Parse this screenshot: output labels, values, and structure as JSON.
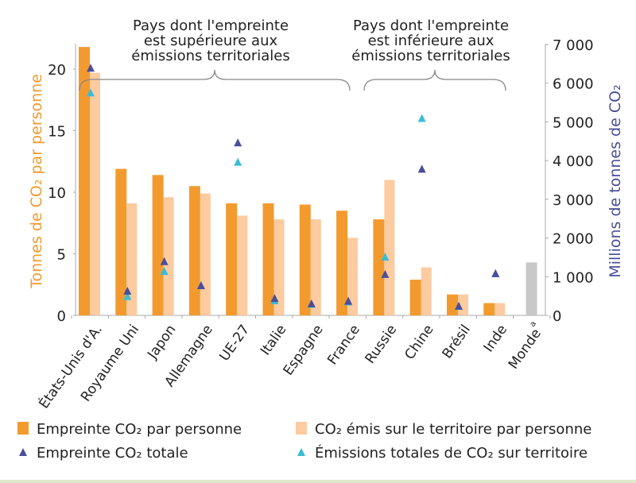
{
  "chart_data": {
    "type": "bar",
    "categories": [
      "États-Unis d'A.",
      "Royaume Uni",
      "Japon",
      "Allemagne",
      "UE-27",
      "Italie",
      "Espagne",
      "France",
      "Russie",
      "Chine",
      "Brésil",
      "Inde",
      "Monde"
    ],
    "category_superscripts": {
      "Monde": "a"
    },
    "y_left": {
      "label": "Tonnes de CO₂ par personne",
      "ylim": [
        0,
        22
      ],
      "ticks": [
        0,
        5,
        10,
        15,
        20
      ],
      "color": "#f39a2e"
    },
    "y_right": {
      "label": "Millions de tonnes de CO₂",
      "ylim": [
        0,
        7000
      ],
      "ticks": [
        0,
        1000,
        2000,
        3000,
        4000,
        5000,
        6000,
        7000
      ],
      "tick_labels": [
        "0",
        "1 000",
        "2 000",
        "3 000",
        "4 000",
        "5 000",
        "6 000",
        "7 000"
      ],
      "color": "#4a4f9a"
    },
    "series": [
      {
        "name": "Empreinte CO₂ par personne",
        "kind": "bar",
        "axis": "left",
        "color": "#f39a2e",
        "values": [
          21.8,
          11.9,
          11.4,
          10.5,
          9.1,
          9.1,
          9.0,
          8.5,
          7.8,
          2.9,
          1.7,
          1.0,
          null
        ]
      },
      {
        "name": "CO₂ émis sur le territoire par personne",
        "kind": "bar",
        "axis": "left",
        "color": "#fccb9f",
        "values": [
          19.7,
          9.1,
          9.6,
          9.9,
          8.1,
          7.8,
          7.8,
          6.3,
          11.0,
          3.9,
          1.7,
          1.0,
          null
        ]
      },
      {
        "name": "Empreinte CO₂ totale",
        "kind": "marker",
        "axis": "right",
        "color": "#4a4f9a",
        "values": [
          6400,
          640,
          1400,
          780,
          4470,
          450,
          310,
          380,
          1070,
          3790,
          250,
          1090,
          null
        ]
      },
      {
        "name": "Émissions totales de CO₂ sur territoire",
        "kind": "marker",
        "axis": "right",
        "color": "#3bbcd6",
        "values": [
          5760,
          500,
          1150,
          780,
          3970,
          390,
          300,
          360,
          1520,
          5100,
          250,
          1090,
          null
        ]
      }
    ],
    "world_bar": {
      "category": "Monde",
      "value": 4.3,
      "axis": "left",
      "color": "#c8c8c8"
    },
    "annotations": [
      {
        "lines": [
          "Pays dont l'empreinte",
          "est supérieure aux",
          "émissions territoriales"
        ],
        "spans": [
          "États-Unis d'A.",
          "France"
        ]
      },
      {
        "lines": [
          "Pays dont l'empreinte",
          "est inférieure aux",
          "émissions territoriales"
        ],
        "spans": [
          "Russie",
          "Inde"
        ]
      }
    ],
    "legend": {
      "placement": "bottom",
      "entries": [
        {
          "label": "Empreinte CO₂ par personne",
          "symbol": "square",
          "color": "#f39a2e"
        },
        {
          "label": "CO₂ émis sur le territoire par personne",
          "symbol": "square",
          "color": "#fccb9f"
        },
        {
          "label": "Empreinte CO₂ totale",
          "symbol": "triangle",
          "color": "#4a4f9a"
        },
        {
          "label": "Émissions totales de CO₂ sur territoire",
          "symbol": "triangle",
          "color": "#3bbcd6"
        }
      ]
    },
    "grid": false
  }
}
